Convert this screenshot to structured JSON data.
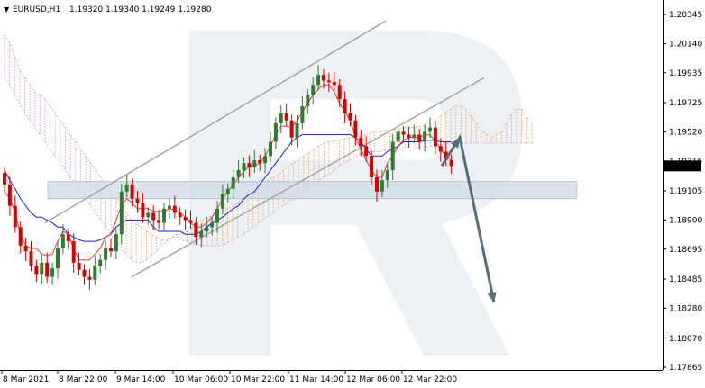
{
  "header": {
    "arrow": "▼",
    "symbol": "EURUSD,H1",
    "ohlc": "1.19320 1.19340 1.19249 1.19280"
  },
  "colors": {
    "bull_candle": "#2e7d32",
    "bear_candle": "#d50000",
    "tenkan": "#e53935",
    "kijun": "#1e1ed2",
    "cloud_a": "#f0a060",
    "cloud_b": "#c49ad6",
    "channel": "#a0a0a0",
    "zone": "#cfdbe8",
    "forecast_arrow": "#546e7a",
    "price_tag_bg": "#000000",
    "price_tag_fg": "#ffffff"
  },
  "chart_data": {
    "type": "candlestick",
    "symbol": "EURUSD",
    "timeframe": "H1",
    "x_ticks": [
      "8 Mar 2021",
      "8 Mar 22:00",
      "9 Mar 14:00",
      "10 Mar 06:00",
      "10 Mar 22:00",
      "11 Mar 14:00",
      "12 Mar 06:00",
      "12 Mar 22:00"
    ],
    "y_ticks": [
      1.20345,
      1.2014,
      1.19935,
      1.19725,
      1.1952,
      1.19315,
      1.19105,
      1.189,
      1.18695,
      1.18485,
      1.1828,
      1.1807,
      1.17865
    ],
    "ylim": [
      1.1781,
      1.2043
    ],
    "current_price": "1.19280",
    "close_series": [
      1.1915,
      1.19,
      1.1885,
      1.1872,
      1.1868,
      1.1858,
      1.1852,
      1.186,
      1.185,
      1.1856,
      1.187,
      1.188,
      1.1875,
      1.186,
      1.1855,
      1.185,
      1.1848,
      1.1858,
      1.1862,
      1.187,
      1.1868,
      1.188,
      1.191,
      1.1915,
      1.1905,
      1.1902,
      1.1892,
      1.1895,
      1.189,
      1.1888,
      1.1898,
      1.19,
      1.1895,
      1.1892,
      1.189,
      1.1888,
      1.1878,
      1.1882,
      1.1885,
      1.1888,
      1.1898,
      1.1908,
      1.1912,
      1.192,
      1.1925,
      1.193,
      1.1927,
      1.1932,
      1.193,
      1.1935,
      1.1945,
      1.1958,
      1.1965,
      1.196,
      1.1948,
      1.1958,
      1.197,
      1.1978,
      1.1985,
      1.1992,
      1.1988,
      1.1987,
      1.1985,
      1.1975,
      1.1965,
      1.196,
      1.1948,
      1.1942,
      1.1935,
      1.192,
      1.191,
      1.1918,
      1.1925,
      1.1945,
      1.1952,
      1.195,
      1.1948,
      1.195,
      1.1945,
      1.1952,
      1.1955,
      1.1942,
      1.1938,
      1.1932,
      1.1928
    ],
    "tenkan": [
      1.191,
      1.1905,
      1.1895,
      1.188,
      1.1872,
      1.187,
      1.187,
      1.1866,
      1.1865,
      1.1866,
      1.1875,
      1.1882,
      1.188,
      1.187,
      1.1862,
      1.1862,
      1.1862,
      1.1866,
      1.187,
      1.1878,
      1.188,
      1.189,
      1.19,
      1.1905,
      1.1902,
      1.1898,
      1.1898,
      1.1898,
      1.1896,
      1.1896,
      1.1896,
      1.1898,
      1.1897,
      1.1895,
      1.1892,
      1.1888,
      1.1885,
      1.1885,
      1.1888,
      1.1892,
      1.1898,
      1.1905,
      1.191,
      1.1915,
      1.192,
      1.1924,
      1.1928,
      1.1928,
      1.193,
      1.1935,
      1.1942,
      1.195,
      1.1956,
      1.1956,
      1.1955,
      1.196,
      1.1966,
      1.1972,
      1.1978,
      1.1982,
      1.1985,
      1.1985,
      1.198,
      1.1972,
      1.1966,
      1.196,
      1.1948,
      1.194,
      1.1932,
      1.1925,
      1.192,
      1.192,
      1.193,
      1.1935,
      1.1942,
      1.1946,
      1.1948,
      1.1948,
      1.1948,
      1.195,
      1.195,
      1.1945,
      1.194,
      1.1935,
      1.1932
    ],
    "kijun": [
      1.1925,
      1.1918,
      1.1912,
      1.1905,
      1.19,
      1.1895,
      1.1892,
      1.1892,
      1.189,
      1.1888,
      1.1885,
      1.1885,
      1.188,
      1.1878,
      1.1876,
      1.1875,
      1.1875,
      1.1875,
      1.1876,
      1.1878,
      1.188,
      1.1885,
      1.1888,
      1.189,
      1.189,
      1.189,
      1.189,
      1.189,
      1.1885,
      1.1882,
      1.1882,
      1.1882,
      1.1882,
      1.1882,
      1.188,
      1.188,
      1.188,
      1.1882,
      1.1885,
      1.1888,
      1.189,
      1.1892,
      1.1895,
      1.1898,
      1.19,
      1.1905,
      1.1908,
      1.191,
      1.1915,
      1.192,
      1.1925,
      1.193,
      1.1935,
      1.194,
      1.1945,
      1.1948,
      1.195,
      1.195,
      1.195,
      1.195,
      1.195,
      1.195,
      1.195,
      1.195,
      1.195,
      1.195,
      1.1948,
      1.1945,
      1.194,
      1.1935,
      1.1935,
      1.1935,
      1.1938,
      1.194,
      1.1942,
      1.1945,
      1.1945,
      1.1945,
      1.1945,
      1.1946,
      1.1946,
      1.1946,
      1.1945,
      1.1945,
      1.1945
    ],
    "cloud_upper": [
      1.202,
      1.2015,
      1.2005,
      1.1995,
      1.199,
      1.1985,
      1.198,
      1.1978,
      1.1975,
      1.197,
      1.1965,
      1.196,
      1.1955,
      1.195,
      1.1945,
      1.194,
      1.1935,
      1.193,
      1.1925,
      1.192,
      1.1915,
      1.191,
      1.1905,
      1.19,
      1.1895,
      1.189,
      1.1887,
      1.1885,
      1.1882,
      1.188,
      1.1878,
      1.1876,
      1.1876,
      1.1878,
      1.188,
      1.188,
      1.1882,
      1.1885,
      1.1888,
      1.189,
      1.1892,
      1.1893,
      1.1895,
      1.1897,
      1.1898,
      1.19,
      1.1902,
      1.1905,
      1.1908,
      1.191,
      1.1912,
      1.1915,
      1.1918,
      1.192,
      1.1922,
      1.1925,
      1.1928,
      1.193,
      1.1932,
      1.1935,
      1.1937,
      1.194,
      1.1942,
      1.1944,
      1.1945,
      1.1946,
      1.1946,
      1.1947,
      1.1948,
      1.1948,
      1.1949,
      1.195,
      1.1951,
      1.1952,
      1.1952,
      1.1953,
      1.1953,
      1.1954,
      1.1954,
      1.1955,
      1.1955,
      1.1955,
      1.1956,
      1.1956,
      1.1958,
      1.196,
      1.1963,
      1.1966,
      1.1968,
      1.197,
      1.197,
      1.1968,
      1.1963,
      1.1958,
      1.1953,
      1.195,
      1.1948,
      1.195,
      1.1952,
      1.1958,
      1.1964,
      1.1968,
      1.1968,
      1.1962,
      1.1958
    ],
    "cloud_lower": [
      1.199,
      1.1985,
      1.1978,
      1.1972,
      1.1965,
      1.196,
      1.1955,
      1.195,
      1.1945,
      1.194,
      1.1935,
      1.193,
      1.1925,
      1.192,
      1.1915,
      1.191,
      1.1905,
      1.19,
      1.1895,
      1.189,
      1.1885,
      1.188,
      1.1875,
      1.187,
      1.1866,
      1.1862,
      1.186,
      1.186,
      1.1862,
      1.1865,
      1.1868,
      1.1872,
      1.1875,
      1.1878,
      1.1878,
      1.1876,
      1.1875,
      1.1874,
      1.1873,
      1.1872,
      1.1872,
      1.1872,
      1.1872,
      1.1872,
      1.1874,
      1.1876,
      1.1878,
      1.188,
      1.1882,
      1.1885,
      1.1888,
      1.189,
      1.1893,
      1.1895,
      1.1898,
      1.19,
      1.1903,
      1.1905,
      1.1908,
      1.191,
      1.1912,
      1.1915,
      1.1918,
      1.192,
      1.1922,
      1.1925,
      1.1928,
      1.193,
      1.1932,
      1.1934,
      1.1936,
      1.1937,
      1.1938,
      1.1938,
      1.1938,
      1.1939,
      1.194,
      1.194,
      1.194,
      1.194,
      1.194,
      1.194,
      1.1941,
      1.1941,
      1.1942,
      1.1942,
      1.1943,
      1.1943,
      1.1944,
      1.1944,
      1.1944,
      1.1944,
      1.1944,
      1.1944,
      1.1944,
      1.1944,
      1.1944,
      1.1944,
      1.1944,
      1.1944,
      1.1944,
      1.1944,
      1.1944,
      1.1944,
      1.1944
    ],
    "channel_upper": [
      [
        1.1888,
        1.203
      ]
    ],
    "channel_lower": [
      [
        1.185,
        1.199
      ]
    ],
    "support_zone": [
      1.1905,
      1.1917
    ],
    "forecast_path": [
      1.1928,
      1.1948,
      1.1832
    ]
  }
}
